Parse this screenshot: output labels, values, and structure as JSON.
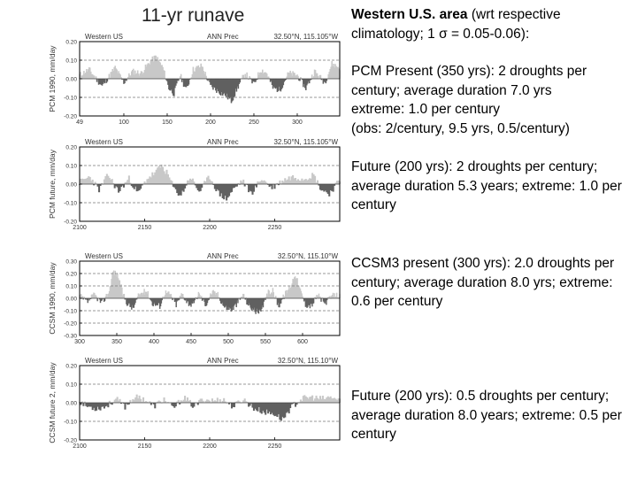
{
  "slide_title": "11-yr runave",
  "text": {
    "header_bold": "Western U.S. area",
    "header_rest": " (wrt respective climatology; 1 σ = 0.05-0.06):",
    "pcm_present": [
      "PCM Present (350 yrs):  2 droughts per century; average duration 7.0 yrs",
      "extreme: 1.0 per century",
      "(obs:  2/century, 9.5 yrs, 0.5/century)"
    ],
    "pcm_future": [
      "Future (200 yrs):  2 droughts per century;  average duration 5.3 years; extreme:  1.0 per century"
    ],
    "ccsm_present": [
      "CCSM3 present (300 yrs):  2.0 droughts per century;  average duration 8.0 yrs; extreme:  0.6 per century"
    ],
    "ccsm_future": [
      "Future (200 yrs):  0.5 droughts per century;  average duration 8.0 years; extreme:  0.5 per century"
    ]
  },
  "colors": {
    "positive": "#c8c8c8",
    "negative": "#606060",
    "frame": "#000000",
    "dash": "#777777"
  },
  "chart_data": [
    {
      "type": "area",
      "ylabel": "PCM 1990, mm/day",
      "header_left": "Western US",
      "header_mid": "ANN Prec",
      "header_right": "32.50°N, 115.105°W",
      "xlim": [
        49,
        349
      ],
      "ylim": [
        -0.2,
        0.2
      ],
      "xticks": [
        "49",
        "100",
        "150",
        "200",
        "250",
        "300"
      ],
      "yticks": [
        "0.20",
        "0.10",
        "0.00",
        "-0.10",
        "-0.20"
      ],
      "seed": 11,
      "anchors": [
        [
          49,
          0.02
        ],
        [
          60,
          0.05
        ],
        [
          75,
          -0.04
        ],
        [
          90,
          0.06
        ],
        [
          100,
          -0.02
        ],
        [
          110,
          0.04
        ],
        [
          120,
          0.03
        ],
        [
          130,
          0.09
        ],
        [
          137,
          0.12
        ],
        [
          145,
          0.06
        ],
        [
          152,
          -0.05
        ],
        [
          158,
          -0.08
        ],
        [
          165,
          0.02
        ],
        [
          172,
          -0.06
        ],
        [
          180,
          0.05
        ],
        [
          190,
          0.07
        ],
        [
          200,
          -0.04
        ],
        [
          210,
          -0.07
        ],
        [
          218,
          -0.09
        ],
        [
          224,
          -0.12
        ],
        [
          232,
          -0.04
        ],
        [
          240,
          0.03
        ],
        [
          250,
          -0.03
        ],
        [
          258,
          0.05
        ],
        [
          265,
          0.03
        ],
        [
          272,
          -0.05
        ],
        [
          280,
          -0.06
        ],
        [
          290,
          0.03
        ],
        [
          300,
          0.02
        ],
        [
          310,
          -0.05
        ],
        [
          320,
          0.04
        ],
        [
          332,
          -0.02
        ],
        [
          340,
          0.08
        ],
        [
          349,
          0.06
        ]
      ]
    },
    {
      "type": "area",
      "ylabel": "PCM future, mm/day",
      "header_left": "Western US",
      "header_mid": "ANN Prec",
      "header_right": "32.50°N, 115.105°W",
      "xlim": [
        2100,
        2300
      ],
      "ylim": [
        -0.2,
        0.2
      ],
      "xticks": [
        "2100",
        "2150",
        "2200",
        "2250"
      ],
      "yticks": [
        "0.20",
        "0.10",
        "0.00",
        "-0.10",
        "-0.20"
      ],
      "seed": 23,
      "anchors": [
        [
          2100,
          0.01
        ],
        [
          2108,
          0.04
        ],
        [
          2115,
          -0.03
        ],
        [
          2122,
          0.05
        ],
        [
          2130,
          -0.04
        ],
        [
          2138,
          0.03
        ],
        [
          2145,
          -0.05
        ],
        [
          2152,
          0.03
        ],
        [
          2158,
          0.06
        ],
        [
          2163,
          0.1
        ],
        [
          2168,
          0.05
        ],
        [
          2173,
          -0.03
        ],
        [
          2178,
          -0.06
        ],
        [
          2185,
          0.04
        ],
        [
          2192,
          -0.04
        ],
        [
          2200,
          0.04
        ],
        [
          2207,
          -0.05
        ],
        [
          2213,
          -0.08
        ],
        [
          2218,
          -0.03
        ],
        [
          2225,
          0.02
        ],
        [
          2232,
          -0.05
        ],
        [
          2240,
          0.03
        ],
        [
          2248,
          -0.02
        ],
        [
          2256,
          0.02
        ],
        [
          2264,
          0.04
        ],
        [
          2272,
          0.03
        ],
        [
          2280,
          0.05
        ],
        [
          2286,
          -0.03
        ],
        [
          2292,
          -0.05
        ],
        [
          2300,
          0.02
        ]
      ]
    },
    {
      "type": "area",
      "ylabel": "CCSM 1990, mm/day",
      "header_left": "Western US",
      "header_mid": "ANN Prec",
      "header_right": "32.50°N, 115.10°W",
      "xlim": [
        300,
        650
      ],
      "ylim": [
        -0.3,
        0.3
      ],
      "xticks": [
        "300",
        "350",
        "400",
        "450",
        "500",
        "550",
        "600"
      ],
      "yticks": [
        "0.30",
        "0.20",
        "0.10",
        "0.00",
        "-0.10",
        "-0.20",
        "-0.30"
      ],
      "seed": 37,
      "anchors": [
        [
          300,
          0.02
        ],
        [
          310,
          -0.03
        ],
        [
          320,
          0.03
        ],
        [
          330,
          -0.04
        ],
        [
          340,
          0.06
        ],
        [
          345,
          0.22
        ],
        [
          352,
          0.18
        ],
        [
          358,
          0.04
        ],
        [
          365,
          -0.05
        ],
        [
          372,
          -0.08
        ],
        [
          380,
          0.03
        ],
        [
          390,
          0.06
        ],
        [
          398,
          -0.04
        ],
        [
          408,
          -0.06
        ],
        [
          415,
          0.05
        ],
        [
          422,
          0.03
        ],
        [
          430,
          -0.05
        ],
        [
          438,
          0.04
        ],
        [
          445,
          -0.03
        ],
        [
          452,
          -0.06
        ],
        [
          460,
          0.04
        ],
        [
          470,
          -0.05
        ],
        [
          478,
          0.05
        ],
        [
          486,
          0.03
        ],
        [
          495,
          -0.07
        ],
        [
          505,
          -0.09
        ],
        [
          512,
          -0.04
        ],
        [
          520,
          0.03
        ],
        [
          528,
          -0.06
        ],
        [
          536,
          -0.1
        ],
        [
          544,
          -0.12
        ],
        [
          552,
          0.04
        ],
        [
          560,
          0.06
        ],
        [
          568,
          -0.06
        ],
        [
          576,
          0.03
        ],
        [
          584,
          0.1
        ],
        [
          590,
          0.2
        ],
        [
          596,
          0.08
        ],
        [
          604,
          -0.05
        ],
        [
          612,
          -0.06
        ],
        [
          620,
          0.03
        ],
        [
          630,
          -0.04
        ],
        [
          640,
          0.02
        ],
        [
          650,
          0.03
        ]
      ]
    },
    {
      "type": "area",
      "ylabel": "CCSM future 2, mm/day",
      "header_left": "Western US",
      "header_mid": "ANN Prec",
      "header_right": "32.50°N, 115.10°W",
      "xlim": [
        2100,
        2300
      ],
      "ylim": [
        -0.2,
        0.2
      ],
      "xticks": [
        "2100",
        "2150",
        "2200",
        "2250"
      ],
      "yticks": [
        "0.20",
        "0.10",
        "0.00",
        "-0.10",
        "-0.20"
      ],
      "seed": 53,
      "anchors": [
        [
          2100,
          0.01
        ],
        [
          2106,
          -0.02
        ],
        [
          2113,
          -0.03
        ],
        [
          2120,
          -0.02
        ],
        [
          2128,
          0.02
        ],
        [
          2135,
          -0.02
        ],
        [
          2142,
          0.03
        ],
        [
          2150,
          0.02
        ],
        [
          2157,
          -0.02
        ],
        [
          2165,
          0.02
        ],
        [
          2172,
          -0.03
        ],
        [
          2180,
          0.03
        ],
        [
          2188,
          -0.02
        ],
        [
          2195,
          0.02
        ],
        [
          2203,
          0.01
        ],
        [
          2210,
          0.02
        ],
        [
          2218,
          -0.02
        ],
        [
          2226,
          0.02
        ],
        [
          2234,
          -0.03
        ],
        [
          2242,
          -0.05
        ],
        [
          2250,
          -0.06
        ],
        [
          2256,
          -0.09
        ],
        [
          2262,
          -0.03
        ],
        [
          2270,
          0.02
        ],
        [
          2278,
          0.03
        ],
        [
          2286,
          0.02
        ],
        [
          2294,
          0.03
        ],
        [
          2300,
          0.01
        ]
      ]
    }
  ]
}
